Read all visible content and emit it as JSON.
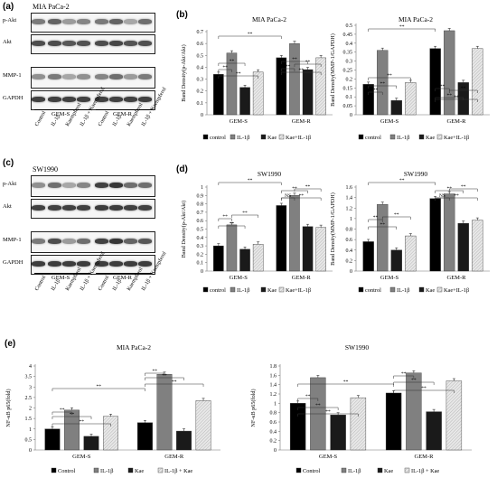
{
  "panels": {
    "a": {
      "letter": "(a)",
      "cell": "MIA PaCa-2",
      "blots": [
        "p-Akt",
        "Akt",
        "MMP-1",
        "GAPDH"
      ],
      "lanes": [
        "Control",
        "IL-1β",
        "Kaempferol",
        "IL-1β + Kaempferol",
        "Control",
        "IL-1β",
        "Kaempferol",
        "IL-1β + Kaempferol"
      ],
      "groups": [
        "GEM-S",
        "GEM-R"
      ]
    },
    "c": {
      "letter": "(c)",
      "cell": "SW1990",
      "blots": [
        "p-Akt",
        "Akt",
        "MMP-1",
        "GAPDH"
      ],
      "lanes": [
        "Control",
        "IL-1β",
        "Kaempferol",
        "IL-1β + Kaempferol",
        "Control",
        "IL-1β",
        "Kaempferol",
        "IL-1β + Kaempferol"
      ],
      "groups": [
        "GEM-S",
        "GEM-R"
      ]
    },
    "b": {
      "letter": "(b)"
    },
    "d": {
      "letter": "(d)"
    },
    "e": {
      "letter": "(e)"
    }
  },
  "colors": {
    "series1": "#000000",
    "series2": "#808080",
    "series3": "#1a1a1a",
    "series4": "#e8e8e8"
  },
  "chart_data": [
    {
      "id": "b1",
      "type": "bar",
      "title": "MIA PaCa-2",
      "ylabel": "Band Density(p-Akt/Akt)",
      "categories": [
        "GEM-S",
        "GEM-R"
      ],
      "yticks": [
        "0",
        "0.1",
        "0.2",
        "0.3",
        "0.4",
        "0.5",
        "0.6",
        "0.7"
      ],
      "ylim": [
        0,
        0.7
      ],
      "series": [
        {
          "name": "control",
          "values": [
            0.34,
            0.48
          ]
        },
        {
          "name": "IL-1β",
          "values": [
            0.52,
            0.6
          ]
        },
        {
          "name": "Kae",
          "values": [
            0.23,
            0.38
          ]
        },
        {
          "name": "Kae+IL-1β",
          "values": [
            0.36,
            0.48
          ]
        }
      ],
      "sig": "**"
    },
    {
      "id": "b2",
      "type": "bar",
      "title": "MIA PaCa-2",
      "ylabel": "Band Density(MMP-1/GAPDH)",
      "categories": [
        "GEM-S",
        "GEM-R"
      ],
      "yticks": [
        "0",
        "0.05",
        "0.1",
        "0.15",
        "0.2",
        "0.25",
        "0.3",
        "0.35",
        "0.4",
        "0.45",
        "0.5"
      ],
      "ylim": [
        0,
        0.5
      ],
      "series": [
        {
          "name": "control",
          "values": [
            0.17,
            0.37
          ]
        },
        {
          "name": "IL-1β",
          "values": [
            0.36,
            0.47
          ]
        },
        {
          "name": "Kae",
          "values": [
            0.08,
            0.18
          ]
        },
        {
          "name": "Kae+IL-1β",
          "values": [
            0.18,
            0.37
          ]
        }
      ],
      "sig": "**"
    },
    {
      "id": "d1",
      "type": "bar",
      "title": "SW1990",
      "ylabel": "Band Density(p-Akt/Akt)",
      "categories": [
        "GEM-S",
        "GEM-R"
      ],
      "yticks": [
        "0",
        "0.1",
        "0.2",
        "0.3",
        "0.4",
        "0.5",
        "0.6",
        "0.7",
        "0.8",
        "0.9",
        "1"
      ],
      "ylim": [
        0,
        1
      ],
      "series": [
        {
          "name": "control",
          "values": [
            0.3,
            0.78
          ]
        },
        {
          "name": "IL-1β",
          "values": [
            0.55,
            0.9
          ]
        },
        {
          "name": "Kae",
          "values": [
            0.26,
            0.53
          ]
        },
        {
          "name": "Kae+IL-1β",
          "values": [
            0.32,
            0.52
          ]
        }
      ],
      "sig": "**",
      "ns": "NS"
    },
    {
      "id": "d2",
      "type": "bar",
      "title": "SW1990",
      "ylabel": "Band Density(MMP-1/GAPDH)",
      "categories": [
        "GEM-S",
        "GEM-R"
      ],
      "yticks": [
        "0",
        "0.2",
        "0.4",
        "0.6",
        "0.8",
        "1",
        "1.2",
        "1.4",
        "1.6"
      ],
      "ylim": [
        0,
        1.6
      ],
      "series": [
        {
          "name": "control",
          "values": [
            0.56,
            1.38
          ]
        },
        {
          "name": "IL-1β",
          "values": [
            1.27,
            1.47
          ]
        },
        {
          "name": "Kae",
          "values": [
            0.4,
            0.91
          ]
        },
        {
          "name": "Kae+IL-1β",
          "values": [
            0.67,
            0.97
          ]
        }
      ],
      "sig": "**",
      "ns": "NS"
    },
    {
      "id": "e1",
      "type": "bar",
      "title": "MIA PaCa-2",
      "ylabel": "NF-κB p65(fold)",
      "categories": [
        "GEM-S",
        "GEM-R"
      ],
      "yticks": [
        "0",
        "0.5",
        "1",
        "1.5",
        "2",
        "2.5",
        "3",
        "3.5",
        "4"
      ],
      "ylim": [
        0,
        4
      ],
      "series": [
        {
          "name": "Control",
          "values": [
            1.0,
            1.3
          ]
        },
        {
          "name": "IL-1β",
          "values": [
            1.9,
            3.6
          ]
        },
        {
          "name": "Kae",
          "values": [
            0.65,
            0.9
          ]
        },
        {
          "name": "IL-1β + Kae",
          "values": [
            1.6,
            2.35
          ]
        }
      ],
      "sig": "**"
    },
    {
      "id": "e2",
      "type": "bar",
      "title": "SW1990",
      "ylabel": "NF-κB p65(fold)",
      "categories": [
        "GEM-S",
        "GEM-R"
      ],
      "yticks": [
        "0",
        "0.2",
        "0.4",
        "0.6",
        "0.8",
        "1",
        "1.2",
        "1.4",
        "1.6",
        "1.8"
      ],
      "ylim": [
        0,
        1.8
      ],
      "series": [
        {
          "name": "Control",
          "values": [
            1.0,
            1.22
          ]
        },
        {
          "name": "IL-1β",
          "values": [
            1.55,
            1.65
          ]
        },
        {
          "name": "Kae",
          "values": [
            0.75,
            0.82
          ]
        },
        {
          "name": "IL-1β + Kae",
          "values": [
            1.12,
            1.48
          ]
        }
      ],
      "sig": "**"
    }
  ]
}
